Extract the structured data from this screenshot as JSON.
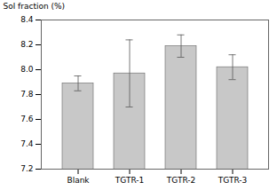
{
  "chart_data": {
    "type": "bar",
    "categories": [
      "Blank",
      "TGTR-1",
      "TGTR-2",
      "TGTR-3"
    ],
    "values": [
      7.89,
      7.97,
      8.19,
      8.02
    ],
    "errors": [
      0.06,
      0.27,
      0.09,
      0.1
    ],
    "color": "#c8c8c8",
    "ylabel": "Sol fraction (%)",
    "ylim": [
      7.2,
      8.4
    ],
    "yticks": [
      7.2,
      7.4,
      7.6,
      7.8,
      {
        "value": 8,
        "label": "8.0"
      },
      8.2,
      8.4
    ],
    "grid": false
  }
}
